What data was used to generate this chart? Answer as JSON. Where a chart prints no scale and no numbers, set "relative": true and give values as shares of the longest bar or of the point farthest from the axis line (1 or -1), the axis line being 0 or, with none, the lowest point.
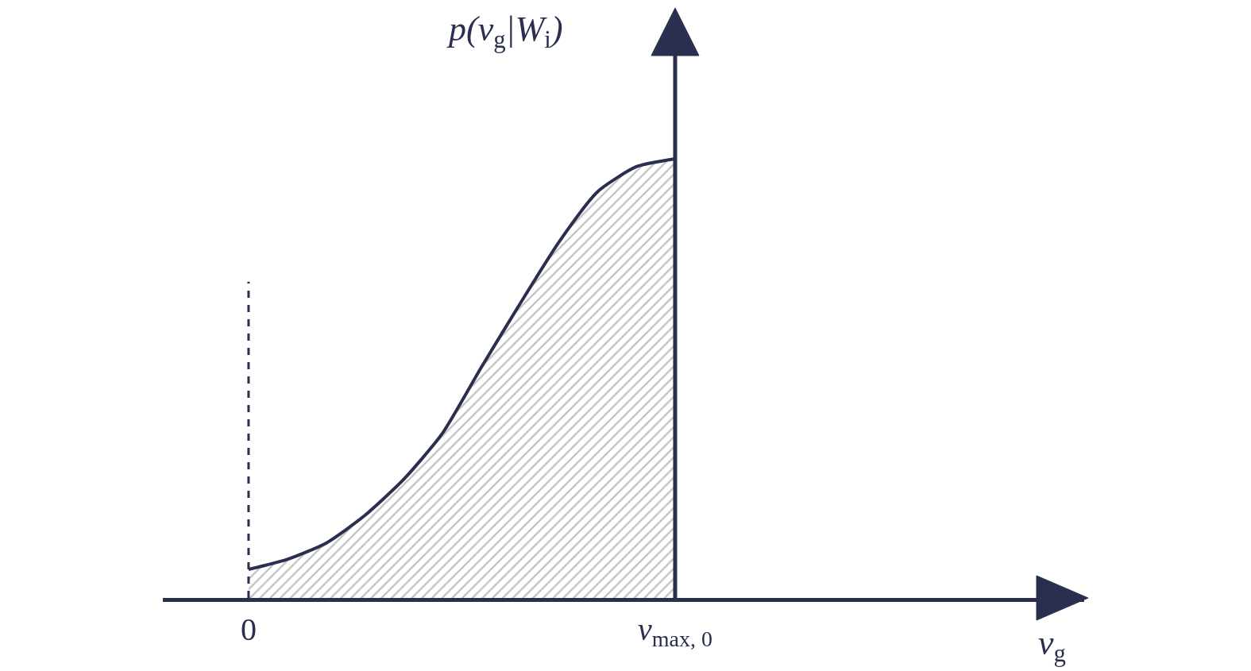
{
  "chart_data": {
    "type": "area",
    "relative": true,
    "annotations": [
      "v$_{g}$"
    ],
    "ylabel": "p(v$_{g}$|W$_{i}$)",
    "categories": [
      "0",
      null,
      null,
      null,
      null,
      null,
      null,
      null,
      null,
      null,
      null,
      "v$_{max, 0}$"
    ],
    "series": [
      {
        "color": "#2b2f4f",
        "values": [
          0.065,
          0.088,
          0.125,
          0.188,
          0.27,
          0.375,
          0.525,
          0.67,
          0.81,
          0.925,
          0.982,
          1
        ]
      }
    ],
    "ref_lines": [
      {
        "axis": "x",
        "value": "0",
        "line_style": "dashed",
        "color": "#2b2f4f"
      }
    ],
    "legend": false
  }
}
